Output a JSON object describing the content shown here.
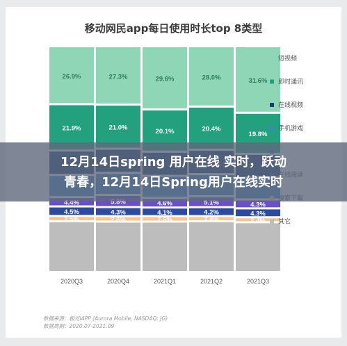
{
  "chart_data": {
    "type": "bar",
    "stacked": true,
    "title": "移动网民app每日使用时长top 8类型",
    "categories": [
      "2020Q3",
      "2020Q4",
      "2021Q1",
      "2021Q2",
      "2021Q3"
    ],
    "ylim": [
      0,
      100
    ],
    "grid": false,
    "legend_position": "right",
    "series": [
      {
        "name": "其它",
        "color": "#bdbdbd",
        "values": [
          null,
          null,
          null,
          null,
          null
        ]
      },
      {
        "name": "搜索下载",
        "color": "#f7c48f",
        "values": [
          2.5,
          2.6,
          2.6,
          2.4,
          2.4
        ]
      },
      {
        "name": "在线阅读",
        "color": "#2b4aa0",
        "values": [
          4.5,
          4.3,
          4.1,
          4.2,
          4.3
        ]
      },
      {
        "name": "",
        "color": "#6a4fc7",
        "values": [
          4.4,
          5.8,
          4.6,
          5.1,
          4.3
        ]
      },
      {
        "name": "手机游戏",
        "color": "#3c87c2",
        "values": [
          null,
          null,
          null,
          null,
          null
        ]
      },
      {
        "name": "在线视频",
        "color": "#1d3f6e",
        "values": [
          null,
          null,
          null,
          null,
          null
        ]
      },
      {
        "name": "即时通讯",
        "color": "#23a07d",
        "values": [
          21.9,
          21.0,
          20.1,
          20.4,
          19.8
        ]
      },
      {
        "name": "短视频",
        "color": "#8ed6b5",
        "values": [
          26.9,
          27.3,
          29.6,
          28.0,
          31.6
        ]
      }
    ],
    "legend_order": [
      "短视频",
      "即时通讯",
      "在线视频",
      "手机游戏",
      "",
      "在线阅读",
      "搜索下载",
      "其它"
    ]
  },
  "overlay": {
    "line1": "12月14日spring 用户在线 实时，跃动",
    "line2": "青春，12月14日Spring用户在线实时"
  },
  "source": {
    "line1": "数据来源：极光iAPP (Aurora Mobile, NASDAQ: JG)",
    "line2": "数据周期：2020.07-2021.09"
  }
}
